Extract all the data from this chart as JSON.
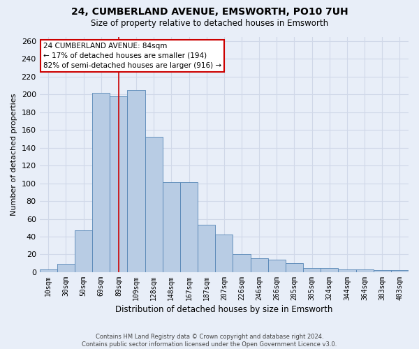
{
  "title": "24, CUMBERLAND AVENUE, EMSWORTH, PO10 7UH",
  "subtitle": "Size of property relative to detached houses in Emsworth",
  "xlabel": "Distribution of detached houses by size in Emsworth",
  "ylabel": "Number of detached properties",
  "categories": [
    "10sqm",
    "30sqm",
    "50sqm",
    "69sqm",
    "89sqm",
    "109sqm",
    "128sqm",
    "148sqm",
    "167sqm",
    "187sqm",
    "207sqm",
    "226sqm",
    "246sqm",
    "266sqm",
    "285sqm",
    "305sqm",
    "324sqm",
    "344sqm",
    "364sqm",
    "383sqm",
    "403sqm"
  ],
  "values": [
    3,
    9,
    47,
    202,
    198,
    205,
    152,
    101,
    101,
    53,
    42,
    20,
    16,
    14,
    10,
    5,
    5,
    3,
    3,
    2,
    2
  ],
  "bar_color": "#b8cce4",
  "bar_edge_color": "#5585b5",
  "bg_color": "#e8eef8",
  "grid_color": "#d0d8e8",
  "vline_color": "#cc0000",
  "annotation_text_line1": "24 CUMBERLAND AVENUE: 84sqm",
  "annotation_text_line2": "← 17% of detached houses are smaller (194)",
  "annotation_text_line3": "82% of semi-detached houses are larger (916) →",
  "annotation_box_facecolor": "#ffffff",
  "annotation_box_edgecolor": "#cc0000",
  "footer_line1": "Contains HM Land Registry data © Crown copyright and database right 2024.",
  "footer_line2": "Contains public sector information licensed under the Open Government Licence v3.0.",
  "ylim_max": 265,
  "yticks": [
    0,
    20,
    40,
    60,
    80,
    100,
    120,
    140,
    160,
    180,
    200,
    220,
    240,
    260
  ],
  "vline_x_index": 4.0
}
